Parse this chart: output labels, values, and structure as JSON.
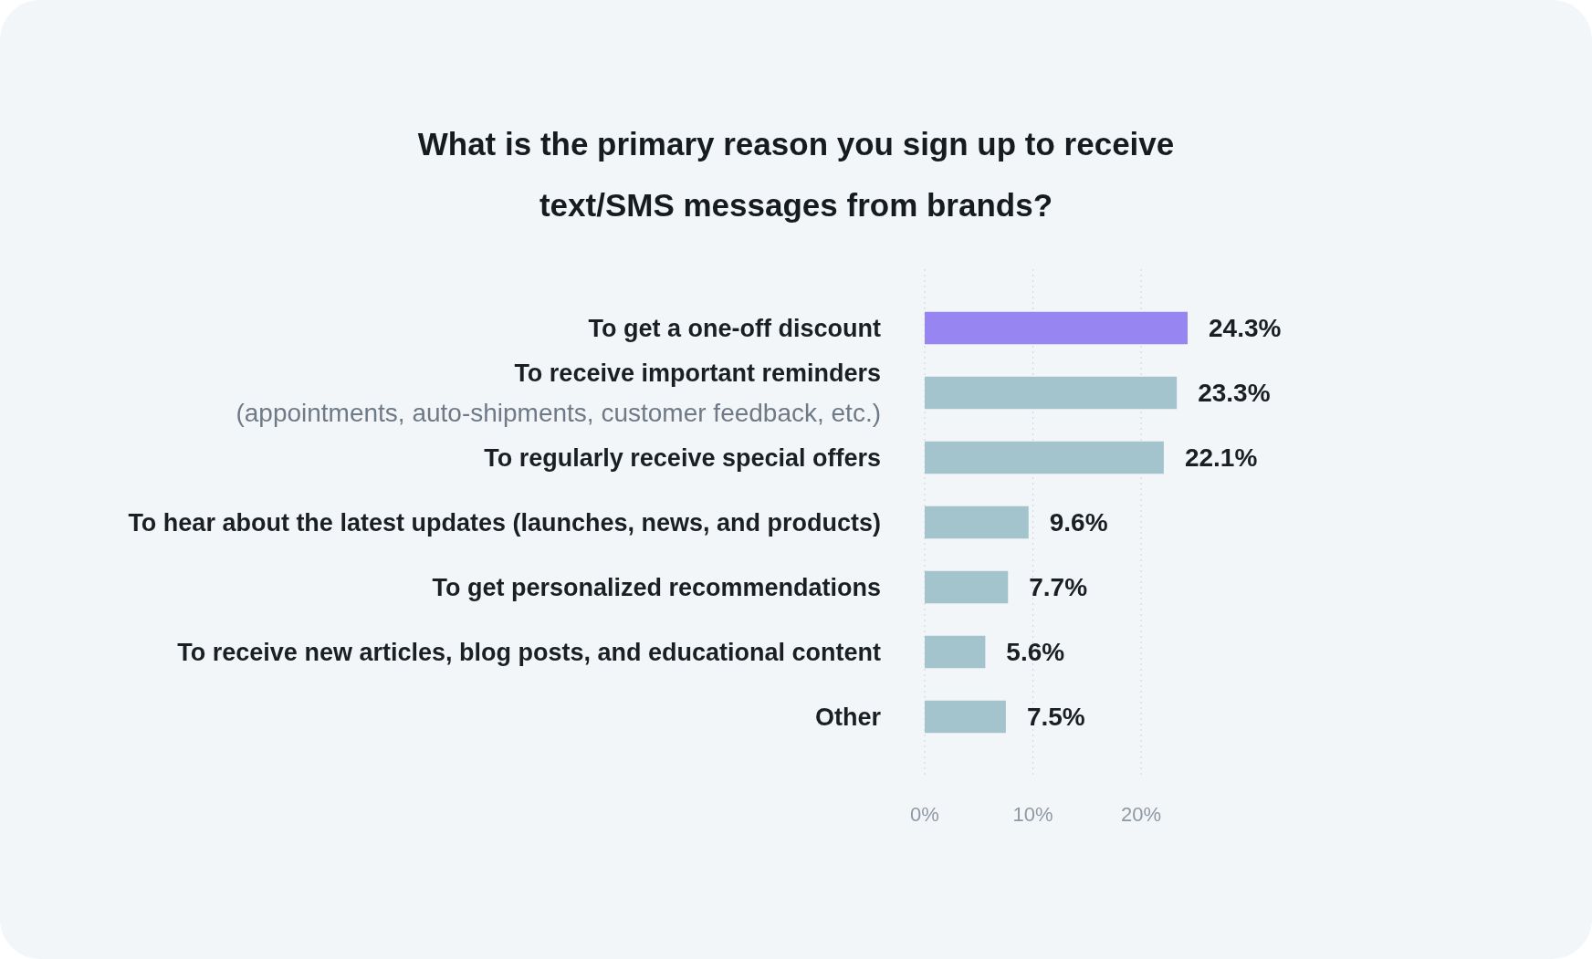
{
  "chart_data": {
    "type": "bar",
    "orientation": "horizontal",
    "title": "What is the primary reason you sign up to receive\ntext/SMS messages from brands?",
    "categories": [
      "To get a one-off discount",
      "To receive important reminders\n(appointments, auto-shipments, customer feedback, etc.)",
      "To regularly receive special offers",
      "To hear about the latest updates (launches, news, and products)",
      "To get personalized recommendations",
      "To receive new articles, blog posts, and educational content",
      "Other"
    ],
    "values": [
      24.3,
      23.3,
      22.1,
      9.6,
      7.7,
      5.6,
      7.5
    ],
    "colors": [
      "#9785f2",
      "#a3c4cd",
      "#a3c4cd",
      "#a3c4cd",
      "#a3c4cd",
      "#a3c4cd",
      "#a3c4cd"
    ],
    "value_labels": [
      "24.3%",
      "23.3%",
      "22.1%",
      "9.6%",
      "7.7%",
      "5.6%",
      "7.5%"
    ],
    "xlim": [
      0,
      24.3
    ],
    "xticks": [
      {
        "value": 0,
        "label": "0%"
      },
      {
        "value": 10,
        "label": "10%"
      },
      {
        "value": 20,
        "label": "20%"
      }
    ],
    "grid": "x"
  }
}
